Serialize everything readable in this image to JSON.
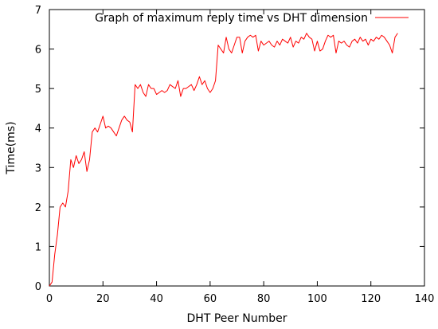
{
  "chart_data": {
    "type": "line",
    "title": "",
    "xlabel": "DHT Peer Number",
    "ylabel": "Time(ms)",
    "xlim": [
      0,
      140
    ],
    "ylim": [
      0,
      7
    ],
    "xticks": [
      0,
      20,
      40,
      60,
      80,
      100,
      120,
      140
    ],
    "yticks": [
      0,
      1,
      2,
      3,
      4,
      5,
      6,
      7
    ],
    "grid": false,
    "legend_position": "top-right",
    "series": [
      {
        "name": "Graph of maximum reply time vs DHT dimension",
        "color": "#ff0000",
        "x": [
          0,
          1,
          2,
          3,
          4,
          5,
          6,
          7,
          8,
          9,
          10,
          11,
          12,
          13,
          14,
          15,
          16,
          17,
          18,
          19,
          20,
          21,
          22,
          23,
          24,
          25,
          26,
          27,
          28,
          29,
          30,
          31,
          32,
          33,
          34,
          35,
          36,
          37,
          38,
          39,
          40,
          41,
          42,
          43,
          44,
          45,
          46,
          47,
          48,
          49,
          50,
          51,
          52,
          53,
          54,
          55,
          56,
          57,
          58,
          59,
          60,
          61,
          62,
          63,
          64,
          65,
          66,
          67,
          68,
          69,
          70,
          71,
          72,
          73,
          74,
          75,
          76,
          77,
          78,
          79,
          80,
          81,
          82,
          83,
          84,
          85,
          86,
          87,
          88,
          89,
          90,
          91,
          92,
          93,
          94,
          95,
          96,
          97,
          98,
          99,
          100,
          101,
          102,
          103,
          104,
          105,
          106,
          107,
          108,
          109,
          110,
          111,
          112,
          113,
          114,
          115,
          116,
          117,
          118,
          119,
          120,
          121,
          122,
          123,
          124,
          125,
          126,
          127,
          128,
          129,
          130
        ],
        "y": [
          0.0,
          0.1,
          0.8,
          1.3,
          2.0,
          2.1,
          2.0,
          2.4,
          3.2,
          3.0,
          3.3,
          3.1,
          3.2,
          3.4,
          2.9,
          3.2,
          3.9,
          4.0,
          3.9,
          4.1,
          4.3,
          4.0,
          4.05,
          4.0,
          3.9,
          3.8,
          4.0,
          4.2,
          4.3,
          4.2,
          4.15,
          3.9,
          5.1,
          5.0,
          5.1,
          4.9,
          4.8,
          5.1,
          5.0,
          5.0,
          4.85,
          4.9,
          4.95,
          4.9,
          4.95,
          5.1,
          5.05,
          5.0,
          5.2,
          4.8,
          5.0,
          5.0,
          5.05,
          5.1,
          4.95,
          5.1,
          5.3,
          5.1,
          5.2,
          5.0,
          4.9,
          5.0,
          5.2,
          6.1,
          6.0,
          5.9,
          6.3,
          6.0,
          5.9,
          6.1,
          6.3,
          6.3,
          5.9,
          6.2,
          6.3,
          6.35,
          6.3,
          6.35,
          5.95,
          6.2,
          6.1,
          6.15,
          6.2,
          6.1,
          6.05,
          6.2,
          6.1,
          6.25,
          6.2,
          6.15,
          6.3,
          6.05,
          6.2,
          6.15,
          6.3,
          6.25,
          6.4,
          6.3,
          6.25,
          5.95,
          6.2,
          5.95,
          6.0,
          6.2,
          6.35,
          6.3,
          6.35,
          5.9,
          6.2,
          6.15,
          6.2,
          6.1,
          6.05,
          6.2,
          6.25,
          6.15,
          6.3,
          6.2,
          6.25,
          6.1,
          6.25,
          6.2,
          6.3,
          6.25,
          6.35,
          6.3,
          6.2,
          6.1,
          5.9,
          6.3,
          6.4
        ]
      }
    ]
  }
}
